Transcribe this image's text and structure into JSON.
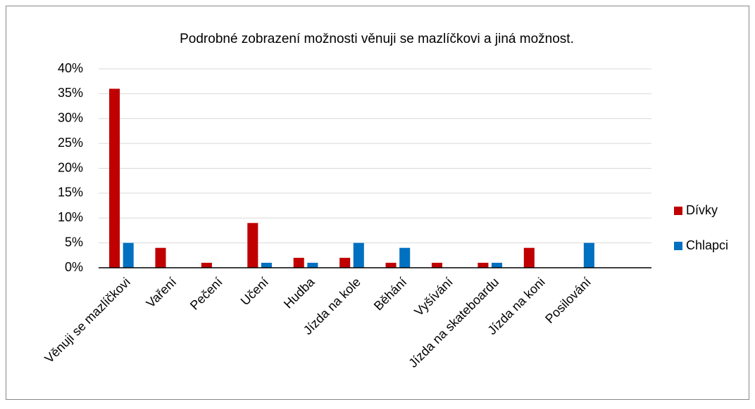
{
  "chart_data": {
    "type": "bar",
    "title": "Podrobné zobrazení možnosti věnuji se mazlíčkovi a jiná možnost.",
    "categories": [
      "Věnuji se mazlíčkovi",
      "Vaření",
      "Pečení",
      "Učení",
      "Hudba",
      "Jízda na kole",
      "Běhání",
      "Vyšívání",
      "Jízda na skateboardu",
      "Jízda na koni",
      "Posilování",
      null
    ],
    "series": [
      {
        "name": "Dívky",
        "color": "#c00000",
        "values": [
          36,
          4,
          1,
          9,
          2,
          2,
          1,
          1,
          1,
          4,
          0,
          null
        ]
      },
      {
        "name": "Chlapci",
        "color": "#0070c0",
        "values": [
          5,
          0,
          0,
          1,
          1,
          5,
          4,
          0,
          1,
          0,
          5,
          null
        ]
      }
    ],
    "ylim": [
      0,
      40
    ],
    "yticks": [
      {
        "value": 0,
        "label": "0%"
      },
      {
        "value": 5,
        "label": "5%"
      },
      {
        "value": 10,
        "label": "10%"
      },
      {
        "value": 15,
        "label": "15%"
      },
      {
        "value": 20,
        "label": "20%"
      },
      {
        "value": 25,
        "label": "25%"
      },
      {
        "value": 30,
        "label": "30%"
      },
      {
        "value": 35,
        "label": "35%"
      },
      {
        "value": 40,
        "label": "40%"
      }
    ],
    "grid": true,
    "legend": "right"
  }
}
